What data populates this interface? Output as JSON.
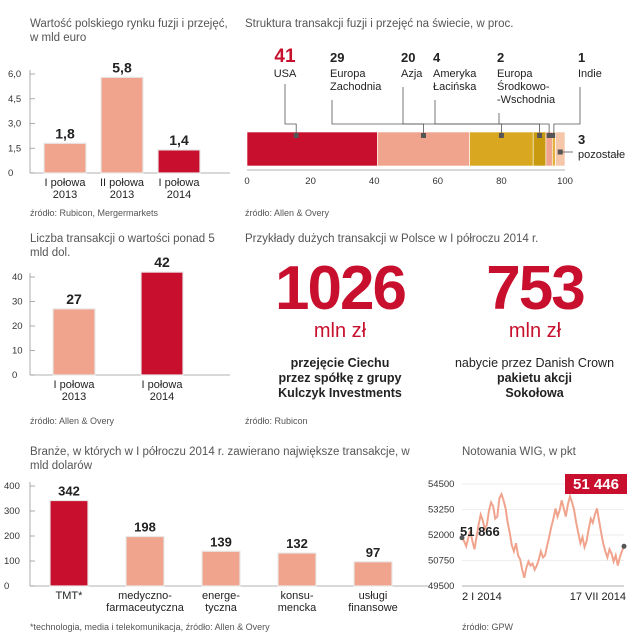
{
  "chart_data": [
    {
      "type": "bar",
      "title": "Wartość polskiego rynku fuzji i przejęć, w mld euro",
      "categories": [
        [
          "I połowa",
          "2013"
        ],
        [
          "II połowa",
          "2013"
        ],
        [
          "I połowa",
          "2014"
        ]
      ],
      "values": [
        1.8,
        5.8,
        1.4
      ],
      "value_labels": [
        "1,8",
        "5,8",
        "1,4"
      ],
      "ylim": [
        0,
        6.0
      ],
      "yticks": [
        0,
        1.5,
        3.0,
        4.5,
        6.0
      ],
      "ytick_labels": [
        "0",
        "1,5",
        "3,0",
        "4,5",
        "6,0"
      ],
      "colors": [
        "#f0a48e",
        "#f0a48e",
        "#c8102e"
      ],
      "source": "źródło: Rubicon, Mergermarkets"
    },
    {
      "type": "bar",
      "title": "Liczba transakcji o wartości ponad 5 mld dol.",
      "categories": [
        [
          "I połowa",
          "2013"
        ],
        [
          "I połowa",
          "2014"
        ]
      ],
      "values": [
        27,
        42
      ],
      "value_labels": [
        "27",
        "42"
      ],
      "ylim": [
        0,
        40
      ],
      "yticks": [
        0,
        10,
        20,
        30,
        40
      ],
      "ytick_labels": [
        "0",
        "10",
        "20",
        "30",
        "40"
      ],
      "colors": [
        "#f0a48e",
        "#c8102e"
      ],
      "source": "źródło: Allen & Overy"
    },
    {
      "type": "bar",
      "orientation": "horizontal-stacked",
      "title": "Struktura transakcji fuzji i przejęć na świecie, w proc.",
      "segments": [
        {
          "value": 41,
          "label": "41",
          "name": [
            "USA"
          ],
          "color": "#c8102e"
        },
        {
          "value": 29,
          "label": "29",
          "name": [
            "Europa",
            "Zachodnia"
          ],
          "color": "#f0a48e"
        },
        {
          "value": 20,
          "label": "20",
          "name": [
            "Azja"
          ],
          "color": "#d9a820"
        },
        {
          "value": 4,
          "label": "4",
          "name": [
            "Ameryka",
            "Łacińska"
          ],
          "color": "#c89a10"
        },
        {
          "value": 2,
          "label": "2",
          "name": [
            "Europa",
            "Środkowo-",
            "-Wschodnia"
          ],
          "color": "#f0a48e"
        },
        {
          "value": 1,
          "label": "1",
          "name": [
            "Indie"
          ],
          "color": "#e6b040"
        },
        {
          "value": 3,
          "label": "3",
          "name": [
            "pozostałe"
          ],
          "color": "#f5c6a8"
        }
      ],
      "xlim": [
        0,
        100
      ],
      "xticks": [
        0,
        20,
        40,
        60,
        80,
        100
      ],
      "xtick_labels": [
        "0",
        "20",
        "40",
        "60",
        "80",
        "100"
      ],
      "source": "źródło: Allen & Overy"
    },
    {
      "type": "bar",
      "title": "Branże, w których w I półroczu 2014 r. zawierano największe transakcje, w mld dolarów",
      "categories": [
        [
          "TMT*"
        ],
        [
          "medyczno-",
          "farmaceutyczna"
        ],
        [
          "energe-",
          "tyczna"
        ],
        [
          "konsu-",
          "mencka"
        ],
        [
          "usługi",
          "finansowe"
        ]
      ],
      "values": [
        342,
        198,
        139,
        132,
        97
      ],
      "value_labels": [
        "342",
        "198",
        "139",
        "132",
        "97"
      ],
      "ylim": [
        0,
        400
      ],
      "yticks": [
        0,
        100,
        200,
        300,
        400
      ],
      "ytick_labels": [
        "0",
        "100",
        "200",
        "300",
        "400"
      ],
      "colors": [
        "#c8102e",
        "#f0a48e",
        "#f0a48e",
        "#f0a48e",
        "#f0a48e"
      ],
      "source": "*technologia, media i telekomunikacja, źródło: Allen & Overy"
    },
    {
      "type": "line",
      "title": "Notowania WIG, w pkt",
      "ylim": [
        49500,
        54500
      ],
      "yticks": [
        49500,
        50750,
        52000,
        53250,
        54500
      ],
      "ytick_labels": [
        "49500",
        "50750",
        "52000",
        "53250",
        "54500"
      ],
      "xtick_labels": [
        "2 I 2014",
        "17 VII 2014"
      ],
      "start_label": "51 866",
      "end_label": "51 446",
      "values": [
        51866,
        51700,
        51450,
        51850,
        52200,
        51700,
        51300,
        51900,
        52500,
        53000,
        52700,
        52300,
        52500,
        53200,
        53600,
        53400,
        52800,
        52900,
        53800,
        54000,
        53700,
        53300,
        52600,
        52100,
        51500,
        51200,
        51600,
        51000,
        50800,
        50300,
        49900,
        50400,
        50700,
        50500,
        50600,
        50300,
        50500,
        50800,
        51200,
        50900,
        51000,
        51500,
        51900,
        52400,
        52800,
        53300,
        52900,
        53200,
        53700,
        53300,
        52900,
        53500,
        53900,
        53600,
        53200,
        52600,
        52100,
        51600,
        51900,
        51400,
        51700,
        52300,
        52800,
        52600,
        53000,
        53300,
        52700,
        52100,
        51600,
        51200,
        50900,
        51300,
        51100,
        50700,
        51000,
        50500,
        50900,
        51200,
        51446
      ],
      "color": "#f0a48e",
      "source": "źródło: GPW"
    }
  ],
  "examples": {
    "title": "Przykłady dużych transakcji  w Polsce w I półroczu 2014 r.",
    "left": {
      "value": "1026",
      "unit": "mln zł",
      "line1": "przejęcie Ciechu",
      "line2": "przez  spółkę z grupy",
      "line3": "Kulczyk Investments"
    },
    "right": {
      "value": "753",
      "unit": "mln zł",
      "line1": "nabycie przez Danish Crown",
      "line2": "pakietu akcji",
      "line3": "Sokołowa"
    },
    "source": "źródło: Rubicon"
  }
}
